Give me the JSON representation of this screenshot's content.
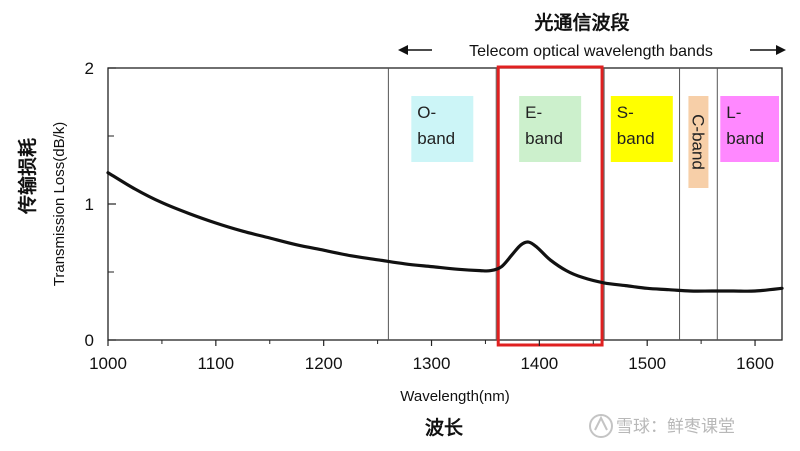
{
  "chart_data": {
    "type": "line",
    "title": "光通信波段",
    "subtitle": "Telecom optical wavelength bands",
    "xlabel": "Wavelength(nm)",
    "xlabel_cn": "波长",
    "ylabel": "Transmission Loss(dB/k)",
    "ylabel_cn": "传输损耗",
    "xlim": [
      1000,
      1625
    ],
    "ylim": [
      0,
      2
    ],
    "x_ticks": [
      "1000",
      "1100",
      "1200",
      "1300",
      "1400",
      "1500",
      "1600"
    ],
    "y_ticks": [
      "0",
      "1",
      "2"
    ],
    "grid": false,
    "series": [
      {
        "color": "#111111",
        "x": [
          1000,
          1025,
          1050,
          1075,
          1100,
          1125,
          1150,
          1175,
          1200,
          1225,
          1250,
          1275,
          1300,
          1325,
          1345,
          1355,
          1365,
          1375,
          1383,
          1390,
          1398,
          1410,
          1425,
          1440,
          1460,
          1480,
          1500,
          1520,
          1540,
          1560,
          1580,
          1600,
          1625
        ],
        "y": [
          1.23,
          1.11,
          1.01,
          0.93,
          0.86,
          0.8,
          0.75,
          0.7,
          0.66,
          0.62,
          0.59,
          0.56,
          0.54,
          0.52,
          0.51,
          0.51,
          0.54,
          0.63,
          0.7,
          0.72,
          0.68,
          0.59,
          0.51,
          0.46,
          0.42,
          0.4,
          0.38,
          0.37,
          0.36,
          0.36,
          0.36,
          0.36,
          0.38
        ]
      }
    ],
    "bands": [
      {
        "name": "O-band",
        "line1": "O-",
        "line2": "band",
        "range": [
          1260,
          1360
        ],
        "color": "#ccf5f7"
      },
      {
        "name": "E-band",
        "line1": "E-",
        "line2": "band",
        "range": [
          1360,
          1460
        ],
        "color": "#ccf0cc",
        "highlight": true,
        "highlight_color": "#e02020"
      },
      {
        "name": "S-band",
        "line1": "S-",
        "line2": "band",
        "range": [
          1460,
          1530
        ],
        "color": "#ffff00"
      },
      {
        "name": "C-band",
        "line1": "C-band",
        "range": [
          1530,
          1565
        ],
        "color": "#f7cfa8",
        "vertical": true
      },
      {
        "name": "L-band",
        "line1": "L-",
        "line2": "band",
        "range": [
          1565,
          1625
        ],
        "color": "#ff88ff"
      }
    ]
  },
  "watermark": {
    "text": "雪球：鲜枣课堂"
  }
}
